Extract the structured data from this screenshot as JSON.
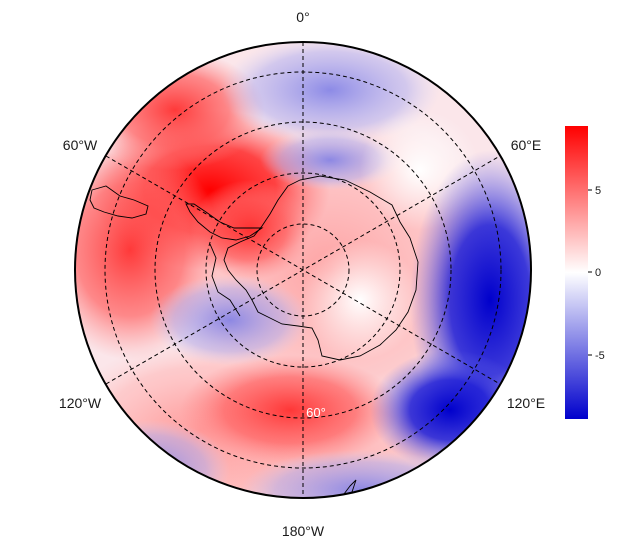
{
  "map": {
    "projection": "south-polar-stereographic",
    "longitude_labels": {
      "top": "0°",
      "upper_left": "60°W",
      "upper_right": "60°E",
      "lower_left": "120°W",
      "lower_right": "120°E",
      "bottom": "180°W"
    },
    "latitude_label": "60°",
    "colorbar": {
      "min": -9,
      "max": 9,
      "ticks": [
        "5",
        "0",
        "-5"
      ],
      "low_color": "#0000cc",
      "mid_color": "#ffffff",
      "high_color": "#ff0000"
    },
    "coastline_color": "#000000",
    "grid_style": "dashed"
  }
}
